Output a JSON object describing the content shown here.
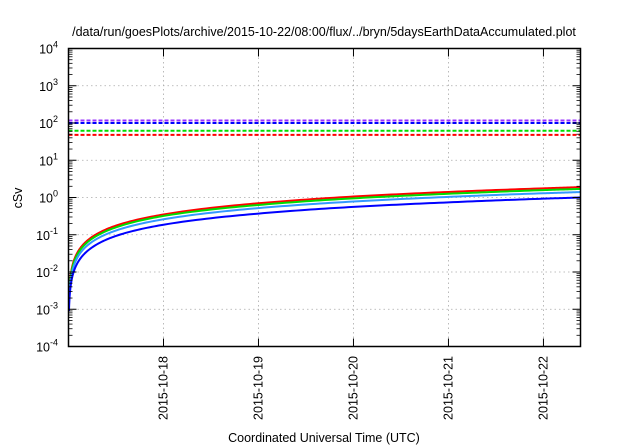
{
  "chart_data": {
    "type": "line",
    "title": "/data/run/goesPlots/archive/2015-10-22/08:00/flux/../bryn/5daysEarthDataAccumulated.plot",
    "xlabel": "Coordinated Universal Time (UTC)",
    "ylabel": "cSv",
    "yscale": "log",
    "ylim": [
      0.0001,
      10000
    ],
    "y_ticks": [
      {
        "exp": -4,
        "label": "10",
        "sup": "-4"
      },
      {
        "exp": -3,
        "label": "10",
        "sup": "-3"
      },
      {
        "exp": -2,
        "label": "10",
        "sup": "-2"
      },
      {
        "exp": -1,
        "label": "10",
        "sup": "-1"
      },
      {
        "exp": 0,
        "label": "10",
        "sup": "0"
      },
      {
        "exp": 1,
        "label": "10",
        "sup": "1"
      },
      {
        "exp": 2,
        "label": "10",
        "sup": "2"
      },
      {
        "exp": 3,
        "label": "10",
        "sup": "3"
      },
      {
        "exp": 4,
        "label": "10",
        "sup": "4"
      }
    ],
    "x_unit": "days since 2015-10-17 00:00 UTC",
    "xlim": [
      0,
      5.39
    ],
    "x_ticks": [
      {
        "value": 1,
        "label": "2015-10-18"
      },
      {
        "value": 2,
        "label": "2015-10-19"
      },
      {
        "value": 3,
        "label": "2015-10-20"
      },
      {
        "value": 4,
        "label": "2015-10-21"
      },
      {
        "value": 5,
        "label": "2015-10-22"
      }
    ],
    "grid": true,
    "series": [
      {
        "name": "accumulated-red",
        "color": "#ff0000",
        "style": "solid",
        "x": [
          0.005,
          0.05,
          0.25,
          0.5,
          1,
          2,
          3,
          4,
          5,
          5.39
        ],
        "values": [
          0.0018,
          0.018,
          0.088,
          0.176,
          0.35,
          0.7,
          1.06,
          1.41,
          1.76,
          1.9
        ]
      },
      {
        "name": "accumulated-green",
        "color": "#00dd00",
        "style": "solid",
        "x": [
          0.005,
          0.05,
          0.25,
          0.5,
          1,
          2,
          3,
          4,
          5,
          5.39
        ],
        "values": [
          0.0016,
          0.016,
          0.079,
          0.158,
          0.32,
          0.63,
          0.95,
          1.26,
          1.58,
          1.7
        ]
      },
      {
        "name": "accumulated-lightblue",
        "color": "#3399ff",
        "style": "solid",
        "x": [
          0.005,
          0.05,
          0.25,
          0.5,
          1,
          2,
          3,
          4,
          5,
          5.39
        ],
        "values": [
          0.0013,
          0.013,
          0.065,
          0.13,
          0.26,
          0.52,
          0.78,
          1.04,
          1.3,
          1.4
        ]
      },
      {
        "name": "accumulated-blue",
        "color": "#0000ff",
        "style": "solid",
        "x": [
          0.005,
          0.05,
          0.25,
          0.5,
          1,
          2,
          3,
          4,
          5,
          5.39
        ],
        "values": [
          0.00093,
          0.0093,
          0.046,
          0.093,
          0.186,
          0.37,
          0.56,
          0.74,
          0.93,
          1.0
        ]
      },
      {
        "name": "threshold-purple",
        "color": "#9933ff",
        "style": "dashed",
        "x": [
          0,
          5.39
        ],
        "values": [
          117,
          117
        ]
      },
      {
        "name": "threshold-blue",
        "color": "#0000ff",
        "style": "dashed",
        "x": [
          0,
          5.39
        ],
        "values": [
          100,
          100
        ]
      },
      {
        "name": "threshold-green",
        "color": "#00dd00",
        "style": "dashed",
        "x": [
          0,
          5.39
        ],
        "values": [
          62,
          62
        ]
      },
      {
        "name": "threshold-red",
        "color": "#ff0000",
        "style": "dashed",
        "x": [
          0,
          5.39
        ],
        "values": [
          48,
          48
        ]
      }
    ]
  }
}
